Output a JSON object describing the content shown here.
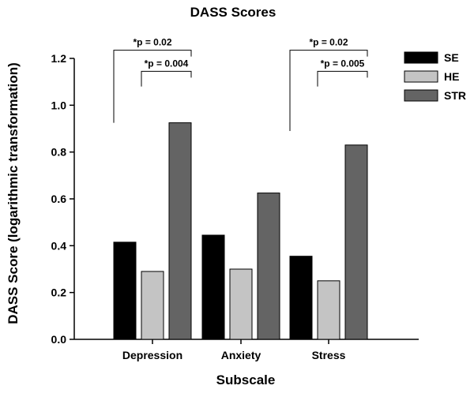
{
  "chart_data": {
    "type": "bar",
    "title": "DASS Scores",
    "xlabel": "Subscale",
    "ylabel": "DASS Score (logarithmic transformation)",
    "categories": [
      "Depression",
      "Anxiety",
      "Stress"
    ],
    "ylim": [
      0,
      1.2
    ],
    "yticks": [
      "0.0",
      "0.2",
      "0.4",
      "0.6",
      "0.8",
      "1.0",
      "1.2"
    ],
    "grid": false,
    "legend_position": "top-right",
    "series": [
      {
        "name": "SE",
        "color": "#000000",
        "values": [
          0.415,
          0.445,
          0.355
        ]
      },
      {
        "name": "HE",
        "color": "#c4c4c4",
        "values": [
          0.29,
          0.3,
          0.25
        ]
      },
      {
        "name": "STR",
        "color": "#646464",
        "values": [
          0.925,
          0.625,
          0.83
        ]
      }
    ],
    "annotations": [
      {
        "text": "*p = 0.02",
        "category": "Depression",
        "from_series": "SE",
        "to_series": "STR"
      },
      {
        "text": "*p = 0.004",
        "category": "Depression",
        "from_series": "HE",
        "to_series": "STR"
      },
      {
        "text": "*p = 0.02",
        "category": "Stress",
        "from_series": "SE",
        "to_series": "STR"
      },
      {
        "text": "*p = 0.005",
        "category": "Stress",
        "from_series": "HE",
        "to_series": "STR"
      }
    ]
  }
}
